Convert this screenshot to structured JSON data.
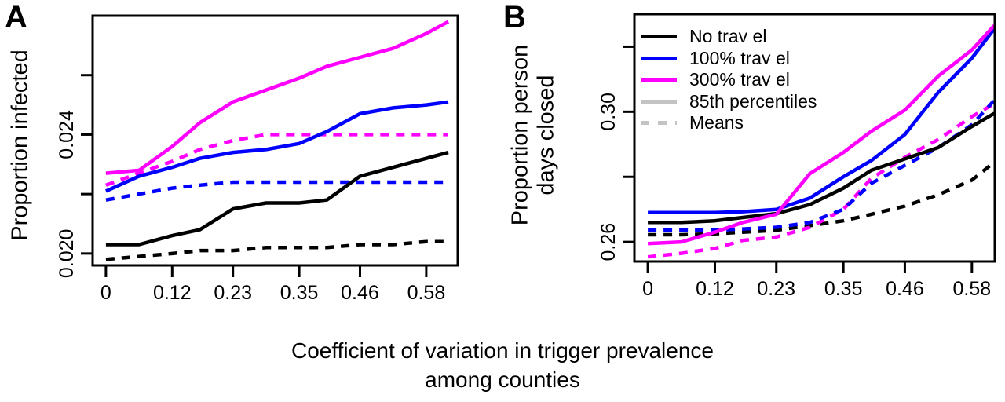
{
  "caption": {
    "line1": "Coefficient of variation in trigger prevalence",
    "line2": "among counties"
  },
  "panels": {
    "a": {
      "letter": "A",
      "ylabel": "Proportion infected"
    },
    "b": {
      "letter": "B",
      "ylabel_line1": "Proportion person",
      "ylabel_line2": "days closed"
    }
  },
  "legend": {
    "items": [
      {
        "label": "No trav el",
        "color": "#000000",
        "dashed": false
      },
      {
        "label": "100% trav el",
        "color": "#0000ff",
        "dashed": false
      },
      {
        "label": "300% trav el",
        "color": "#ff00ff",
        "dashed": false
      },
      {
        "label": "85th percentiles",
        "color": "#c3c3c3",
        "dashed": false
      },
      {
        "label": "Means",
        "color": "#c3c3c3",
        "dashed": true
      }
    ]
  },
  "colors": {
    "black": "#000000",
    "blue": "#0000ff",
    "magenta": "#ff00ff",
    "legend_gray": "#c3c3c3",
    "background": "#ffffff"
  },
  "chart_data": [
    {
      "type": "line",
      "panel": "A",
      "title": "",
      "xlabel": "Coefficient of variation in trigger prevalence among counties",
      "ylabel": "Proportion infected",
      "grid": false,
      "x": [
        0,
        0.06,
        0.12,
        0.17,
        0.23,
        0.29,
        0.35,
        0.4,
        0.46,
        0.52,
        0.58,
        0.62
      ],
      "xlim": [
        -0.024,
        0.637
      ],
      "ylim": [
        0.0196,
        0.028
      ],
      "xticks": {
        "values": [
          0,
          0.12,
          0.23,
          0.35,
          0.46,
          0.58
        ],
        "labels": [
          "0",
          "0.12",
          "0.23",
          "0.35",
          "0.46",
          "0.58"
        ]
      },
      "yticks": {
        "values": [
          0.02,
          0.022,
          0.024,
          0.026
        ],
        "labels": [
          "0.020",
          "",
          "0.024",
          ""
        ]
      },
      "series": [
        {
          "name": "No travel - mean",
          "color": "#000000",
          "dashed": true,
          "values": [
            0.0198,
            0.0199,
            0.02,
            0.0201,
            0.0201,
            0.0202,
            0.0202,
            0.0202,
            0.0203,
            0.0203,
            0.0204,
            0.0204
          ]
        },
        {
          "name": "300% travel - mean",
          "color": "#ff00ff",
          "dashed": true,
          "values": [
            0.0223,
            0.0227,
            0.0231,
            0.0235,
            0.0238,
            0.024,
            0.024,
            0.024,
            0.024,
            0.024,
            0.024,
            0.024
          ]
        },
        {
          "name": "100% travel - mean",
          "color": "#0000ff",
          "dashed": true,
          "values": [
            0.0218,
            0.022,
            0.0222,
            0.0223,
            0.0224,
            0.0224,
            0.0224,
            0.0224,
            0.0224,
            0.0224,
            0.0224,
            0.0224
          ]
        },
        {
          "name": "No travel - 85th percentile",
          "color": "#000000",
          "dashed": false,
          "values": [
            0.0203,
            0.0203,
            0.0206,
            0.0208,
            0.0215,
            0.0217,
            0.0217,
            0.0218,
            0.0226,
            0.0229,
            0.0232,
            0.0234
          ]
        },
        {
          "name": "100% travel - 85th percentile",
          "color": "#0000ff",
          "dashed": false,
          "values": [
            0.0221,
            0.0226,
            0.0229,
            0.0232,
            0.0234,
            0.0235,
            0.0237,
            0.0241,
            0.0247,
            0.0249,
            0.025,
            0.0251
          ]
        },
        {
          "name": "300% travel - 85th percentile",
          "color": "#ff00ff",
          "dashed": false,
          "values": [
            0.0227,
            0.0228,
            0.0236,
            0.0244,
            0.0251,
            0.0255,
            0.0259,
            0.0263,
            0.0266,
            0.0269,
            0.0274,
            0.0278
          ]
        }
      ]
    },
    {
      "type": "line",
      "panel": "B",
      "title": "",
      "xlabel": "Coefficient of variation in trigger prevalence among counties",
      "ylabel": "Proportion person days closed",
      "grid": false,
      "legend_position": "inside top-left",
      "x": [
        0,
        0.06,
        0.12,
        0.17,
        0.23,
        0.29,
        0.35,
        0.4,
        0.46,
        0.52,
        0.58,
        0.62
      ],
      "xlim": [
        -0.024,
        0.621
      ],
      "ylim": [
        0.254,
        0.33
      ],
      "xticks": {
        "values": [
          0,
          0.12,
          0.23,
          0.35,
          0.46,
          0.58
        ],
        "labels": [
          "0",
          "0.12",
          "0.23",
          "0.35",
          "0.46",
          "0.58"
        ]
      },
      "yticks": {
        "values": [
          0.26,
          0.28,
          0.3,
          0.32
        ],
        "labels": [
          "0.26",
          "",
          "0.30",
          ""
        ]
      },
      "series": [
        {
          "name": "No travel - mean",
          "color": "#000000",
          "dashed": true,
          "values": [
            0.2622,
            0.2622,
            0.2625,
            0.263,
            0.2636,
            0.265,
            0.2665,
            0.2685,
            0.271,
            0.2745,
            0.279,
            0.2845
          ]
        },
        {
          "name": "300% travel - mean",
          "color": "#ff00ff",
          "dashed": true,
          "values": [
            0.2554,
            0.2565,
            0.258,
            0.2605,
            0.2615,
            0.2645,
            0.27,
            0.2795,
            0.286,
            0.2915,
            0.2985,
            0.3025
          ]
        },
        {
          "name": "100% travel - mean",
          "color": "#0000ff",
          "dashed": true,
          "values": [
            0.2636,
            0.2636,
            0.2636,
            0.264,
            0.2645,
            0.266,
            0.27,
            0.278,
            0.2835,
            0.289,
            0.296,
            0.3035
          ]
        },
        {
          "name": "No travel - 85th percentile",
          "color": "#000000",
          "dashed": false,
          "values": [
            0.266,
            0.266,
            0.2665,
            0.2675,
            0.2687,
            0.2715,
            0.2765,
            0.282,
            0.2855,
            0.289,
            0.2955,
            0.2995
          ]
        },
        {
          "name": "100% travel - 85th percentile",
          "color": "#0000ff",
          "dashed": false,
          "values": [
            0.269,
            0.269,
            0.269,
            0.2693,
            0.27,
            0.2735,
            0.28,
            0.285,
            0.293,
            0.306,
            0.3165,
            0.3255
          ]
        },
        {
          "name": "300% travel - 85th percentile",
          "color": "#ff00ff",
          "dashed": false,
          "values": [
            0.2595,
            0.26,
            0.263,
            0.266,
            0.2685,
            0.281,
            0.2875,
            0.294,
            0.3005,
            0.311,
            0.319,
            0.3265
          ]
        }
      ]
    }
  ]
}
